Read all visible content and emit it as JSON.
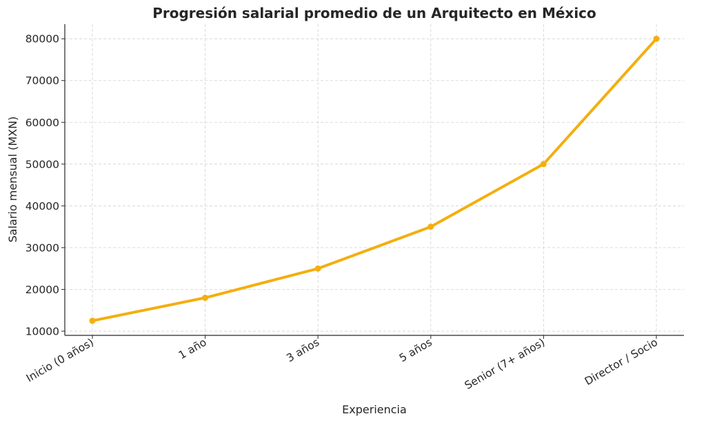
{
  "chart_data": {
    "type": "line",
    "title": "Progresión salarial promedio de un Arquitecto en México",
    "xlabel": "Experiencia",
    "ylabel": "Salario mensual (MXN)",
    "categories": [
      "Inicio (0 años)",
      "1 año",
      "3 años",
      "5 años",
      "Senior (7+ años)",
      "Director / Socio"
    ],
    "series": [
      {
        "name": "Salario mensual",
        "values": [
          12500,
          18000,
          25000,
          35000,
          50000,
          80000
        ],
        "color": "#F4AE0E"
      }
    ],
    "yticks": [
      10000,
      20000,
      30000,
      40000,
      50000,
      60000,
      70000,
      80000
    ],
    "ylim": [
      9000,
      83500
    ],
    "grid": true
  }
}
